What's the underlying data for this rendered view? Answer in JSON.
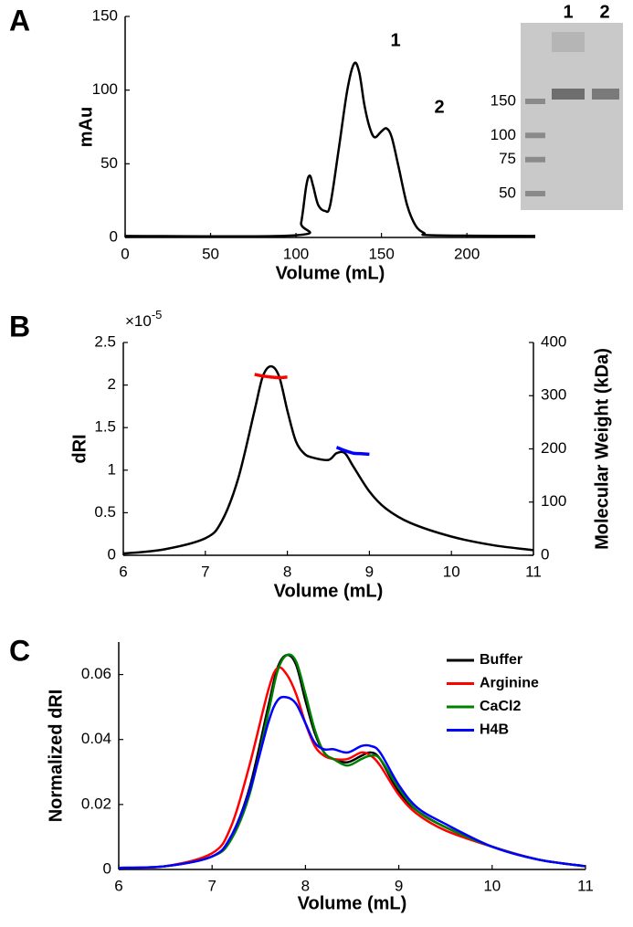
{
  "chart_data": [
    {
      "type": "line",
      "panel": "A",
      "xlabel": "Volume (mL)",
      "ylabel": "mAu",
      "xlim": [
        0,
        240
      ],
      "xticks": [
        0,
        50,
        100,
        150,
        200
      ],
      "ylim": [
        0,
        150
      ],
      "yticks": [
        0,
        50,
        100,
        150
      ],
      "x": [
        0,
        100,
        103,
        106,
        108,
        110,
        113,
        117,
        120,
        125,
        130,
        134,
        137,
        140,
        143,
        146,
        150,
        153,
        156,
        160,
        165,
        170,
        175,
        180,
        240
      ],
      "series": [
        {
          "color": "#000000",
          "values": [
            1,
            1.5,
            10,
            35,
            42,
            35,
            22,
            18,
            22,
            60,
            100,
            118,
            112,
            90,
            75,
            68,
            72,
            74,
            68,
            48,
            22,
            8,
            3,
            1.5,
            1
          ]
        }
      ],
      "peak_labels": [
        "1",
        "2"
      ],
      "inset": {
        "lane_labels": [
          "1",
          "2"
        ],
        "ladder_labels": [
          150,
          100,
          75,
          50
        ]
      }
    },
    {
      "type": "line",
      "panel": "B",
      "xlabel": "Volume (mL)",
      "ylabel": "dRI",
      "y2label": "Molecular Weight (kDa)",
      "y_multiplier": {
        "base": "×10",
        "exponent": "-5"
      },
      "xlim": [
        6,
        11
      ],
      "xticks": [
        6,
        7,
        8,
        9,
        10,
        11
      ],
      "ylim": [
        0,
        2.5
      ],
      "yticks": [
        0,
        0.5,
        1,
        1.5,
        2,
        2.5
      ],
      "y2lim": [
        0,
        400
      ],
      "y2ticks": [
        0,
        100,
        200,
        300,
        400
      ],
      "series": [
        {
          "color": "#000000",
          "x": [
            6,
            6.5,
            7,
            7.2,
            7.4,
            7.6,
            7.7,
            7.8,
            7.9,
            8.0,
            8.1,
            8.2,
            8.3,
            8.5,
            8.6,
            8.7,
            8.8,
            9.0,
            9.2,
            9.5,
            10,
            10.5,
            11
          ],
          "values": [
            0.02,
            0.07,
            0.2,
            0.4,
            0.9,
            1.7,
            2.1,
            2.22,
            2.1,
            1.7,
            1.35,
            1.2,
            1.15,
            1.12,
            1.2,
            1.2,
            1.05,
            0.75,
            0.55,
            0.38,
            0.22,
            0.12,
            0.06
          ]
        },
        {
          "color": "#ff0000",
          "axis": "y2",
          "x": [
            7.6,
            7.7,
            7.8,
            7.9,
            8.0
          ],
          "values": [
            340,
            337,
            335,
            334,
            335
          ]
        },
        {
          "color": "#0000ff",
          "axis": "y2",
          "x": [
            8.6,
            8.7,
            8.8,
            8.9,
            9.0
          ],
          "values": [
            203,
            197,
            192,
            191,
            190
          ]
        }
      ]
    },
    {
      "type": "line",
      "panel": "C",
      "xlabel": "Volume (mL)",
      "ylabel": "Normalized dRI",
      "xlim": [
        6,
        11
      ],
      "xticks": [
        6,
        7,
        8,
        9,
        10,
        11
      ],
      "ylim": [
        0,
        0.07
      ],
      "yticks": [
        0,
        0.02,
        0.04,
        0.06
      ],
      "legend": "upper right",
      "x": [
        6,
        6.5,
        7,
        7.2,
        7.4,
        7.6,
        7.7,
        7.8,
        7.9,
        8.0,
        8.1,
        8.2,
        8.3,
        8.45,
        8.6,
        8.7,
        8.8,
        9.0,
        9.2,
        9.5,
        10,
        10.5,
        11
      ],
      "series": [
        {
          "name": "Buffer",
          "color": "#000000",
          "values": [
            0.0005,
            0.001,
            0.004,
            0.01,
            0.025,
            0.05,
            0.062,
            0.066,
            0.063,
            0.052,
            0.042,
            0.036,
            0.034,
            0.033,
            0.035,
            0.036,
            0.034,
            0.024,
            0.018,
            0.013,
            0.007,
            0.003,
            0.001
          ]
        },
        {
          "name": "Arginine",
          "color": "#ff0000",
          "values": [
            0.0005,
            0.001,
            0.005,
            0.013,
            0.032,
            0.055,
            0.062,
            0.06,
            0.054,
            0.045,
            0.038,
            0.035,
            0.034,
            0.034,
            0.036,
            0.035,
            0.032,
            0.023,
            0.017,
            0.012,
            0.007,
            0.003,
            0.001
          ]
        },
        {
          "name": "CaCl2",
          "color": "#008000",
          "values": [
            0.0005,
            0.001,
            0.004,
            0.009,
            0.023,
            0.048,
            0.061,
            0.066,
            0.064,
            0.054,
            0.043,
            0.036,
            0.034,
            0.032,
            0.034,
            0.035,
            0.034,
            0.025,
            0.018,
            0.013,
            0.007,
            0.003,
            0.001
          ]
        },
        {
          "name": "H4B",
          "color": "#0000ff",
          "values": [
            0.0005,
            0.001,
            0.004,
            0.01,
            0.024,
            0.045,
            0.052,
            0.053,
            0.051,
            0.045,
            0.039,
            0.037,
            0.037,
            0.036,
            0.038,
            0.038,
            0.036,
            0.026,
            0.019,
            0.014,
            0.007,
            0.003,
            0.001
          ]
        }
      ]
    }
  ]
}
